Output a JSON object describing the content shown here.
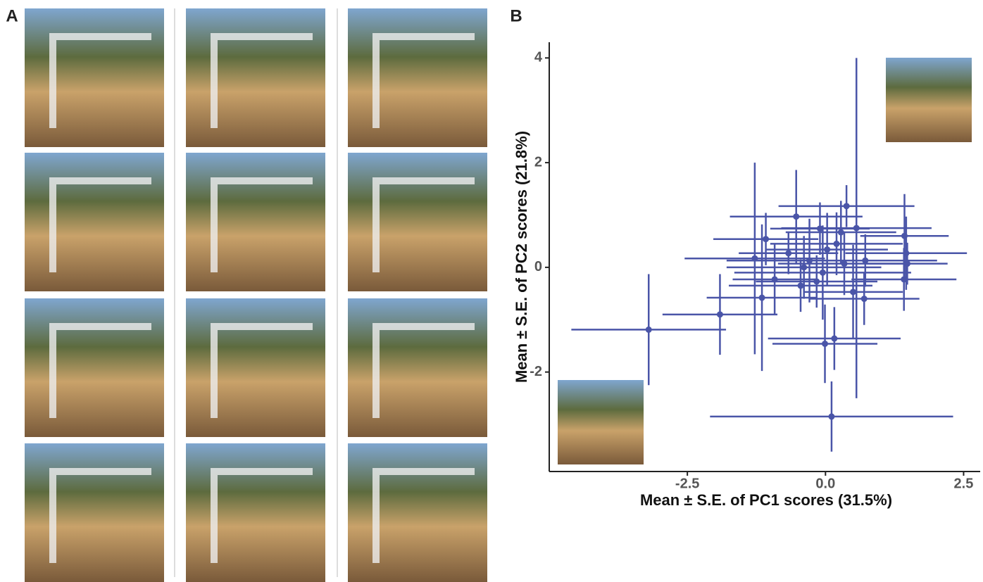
{
  "panel_labels": [
    "A",
    "B"
  ],
  "chart_data": {
    "type": "scatter",
    "x_label": "Mean ± S.E. of PC1 scores (31.5%)",
    "y_label": "Mean ± S.E. of PC2 scores (21.8%)",
    "xlim": [
      -5,
      2.8
    ],
    "ylim": [
      -3.9,
      4.3
    ],
    "xticks": [
      -2.5,
      {
        "value": 0,
        "label": "0.0"
      },
      2.5
    ],
    "yticks": [
      -2,
      0,
      2,
      4
    ],
    "series": [
      {
        "color": "#4a55a8",
        "x": [
          -3.2,
          -1.91,
          0.11,
          -0.01,
          0.16,
          0.56,
          -0.53,
          0.38,
          -1.28,
          -1.15,
          -0.92,
          -1.08,
          1.46,
          1.48,
          1.42,
          1.43,
          0.28,
          0.7,
          0.5,
          0.03,
          -0.39,
          -0.16,
          -0.29,
          0.34,
          -0.1,
          0.72,
          -0.67,
          -0.05,
          0.2,
          -0.45
        ],
        "values": [
          -1.19,
          -0.9,
          -2.85,
          -1.46,
          -1.36,
          0.75,
          0.97,
          1.17,
          0.17,
          -0.58,
          -0.23,
          0.54,
          0.27,
          0.07,
          -0.23,
          0.6,
          0.67,
          -0.6,
          -0.47,
          0.34,
          0,
          -0.27,
          0.13,
          0.07,
          0.74,
          0.13,
          0.27,
          -0.1,
          0.45,
          -0.35
        ],
        "x_err": [
          1.4,
          1.04,
          2.2,
          0.95,
          1.2,
          1.36,
          1.2,
          1.23,
          1.27,
          1.0,
          0.76,
          0.95,
          1.1,
          0.73,
          0.95,
          0.8,
          1.0,
          1.0,
          0.9,
          1.1,
          1.4,
          1.1,
          1.5,
          1.2,
          0.9,
          1.3,
          0.9,
          1.6,
          1.2,
          1.3
        ],
        "y_err": [
          1.06,
          0.77,
          0.67,
          0.75,
          0.6,
          3.25,
          0.89,
          0.4,
          1.83,
          1.4,
          0.67,
          0.5,
          0.7,
          0.4,
          0.6,
          0.8,
          0.6,
          0.5,
          0.9,
          0.7,
          0.6,
          0.5,
          0.8,
          0.6,
          0.5,
          0.5,
          0.4,
          0.9,
          0.6,
          0.5
        ]
      }
    ]
  }
}
